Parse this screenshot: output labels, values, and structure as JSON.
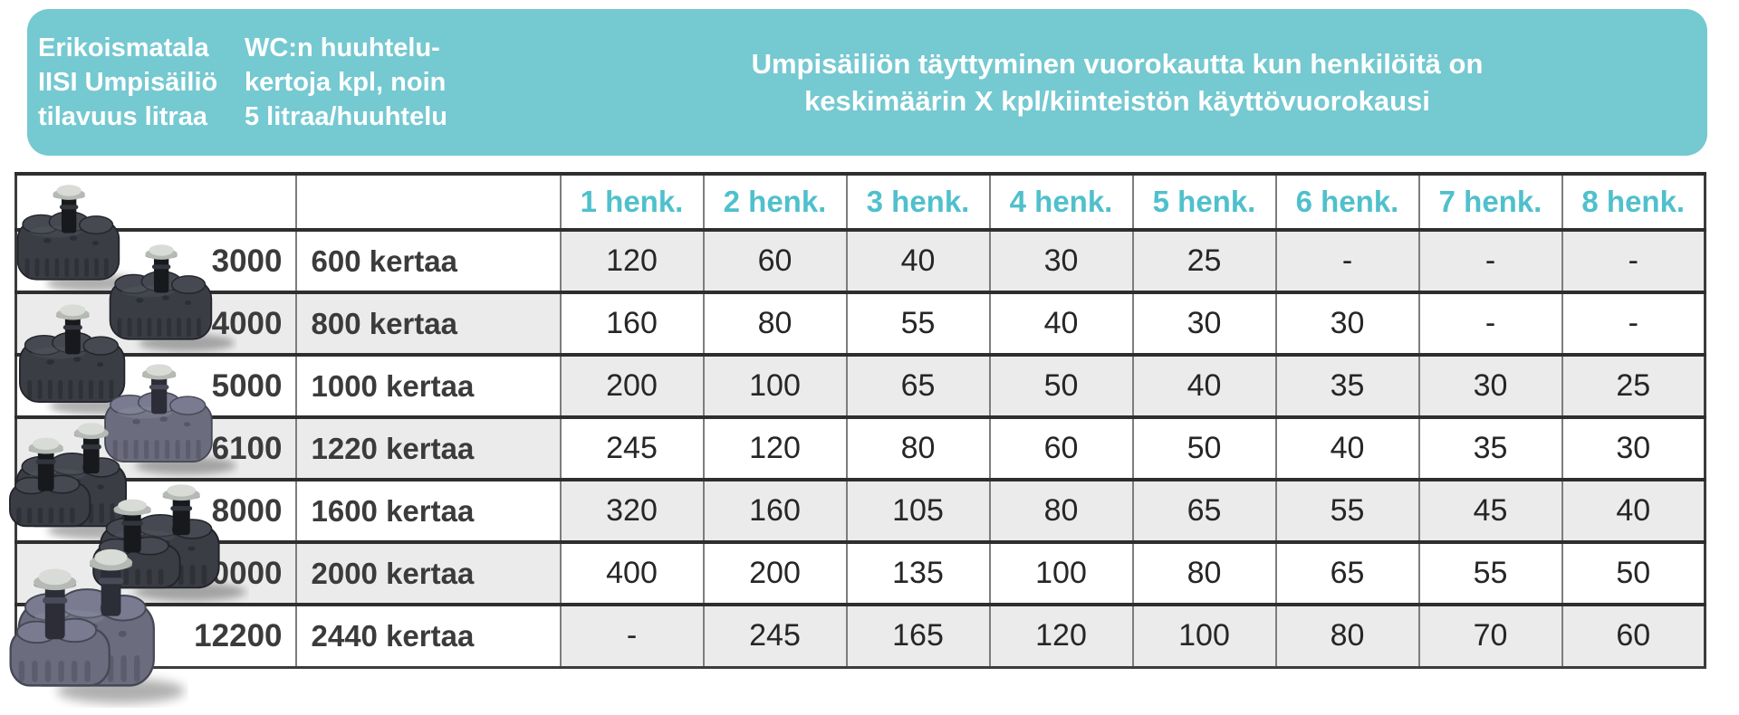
{
  "banner": {
    "volume_title_lines": [
      "Erikoismatala",
      "IISI Umpisäiliö",
      "tilavuus litraa"
    ],
    "flush_title_lines": [
      "WC:n huuhtelu-",
      "kertoja kpl, noin",
      "5 litraa/huuhtelu"
    ],
    "fill_title_lines": [
      "Umpisäiliön täyttyminen vuorokautta kun henkilöitä on",
      "keskimäärin X kpl/kiinteistön käyttövuorokausi"
    ]
  },
  "table": {
    "person_headers": [
      "1 henk.",
      "2 henk.",
      "3 henk.",
      "4 henk.",
      "5 henk.",
      "6 henk.",
      "7 henk.",
      "8 henk."
    ],
    "rows": [
      {
        "volume": "3000",
        "flushes": "600 kertaa",
        "values": [
          "120",
          "60",
          "40",
          "30",
          "25",
          "-",
          "-",
          "-"
        ]
      },
      {
        "volume": "4000",
        "flushes": "800 kertaa",
        "values": [
          "160",
          "80",
          "55",
          "40",
          "30",
          "30",
          "-",
          "-"
        ]
      },
      {
        "volume": "5000",
        "flushes": "1000 kertaa",
        "values": [
          "200",
          "100",
          "65",
          "50",
          "40",
          "35",
          "30",
          "25"
        ]
      },
      {
        "volume": "6100",
        "flushes": "1220 kertaa",
        "values": [
          "245",
          "120",
          "80",
          "60",
          "50",
          "40",
          "35",
          "30"
        ]
      },
      {
        "volume": "8000",
        "flushes": "1600 kertaa",
        "values": [
          "320",
          "160",
          "105",
          "80",
          "65",
          "55",
          "45",
          "40"
        ]
      },
      {
        "volume": "10000",
        "flushes": "2000 kertaa",
        "values": [
          "400",
          "200",
          "135",
          "100",
          "80",
          "65",
          "55",
          "50"
        ]
      },
      {
        "volume": "12200",
        "flushes": "2440 kertaa",
        "values": [
          "-",
          "245",
          "165",
          "120",
          "100",
          "80",
          "70",
          "60"
        ]
      }
    ]
  },
  "tank_images": [
    {
      "name": "tank-3000",
      "variant": "charcoal",
      "caps": 1
    },
    {
      "name": "tank-4000",
      "variant": "charcoal",
      "caps": 1
    },
    {
      "name": "tank-5000",
      "variant": "charcoal",
      "caps": 1
    },
    {
      "name": "tank-6100",
      "variant": "slate",
      "caps": 1
    },
    {
      "name": "tank-8000",
      "variant": "charcoal",
      "caps": 2
    },
    {
      "name": "tank-10000",
      "variant": "charcoal",
      "caps": 2
    },
    {
      "name": "tank-12200",
      "variant": "slate",
      "caps": 2
    }
  ],
  "colors": {
    "banner_bg": "#75c9d1",
    "banner_text": "#ffffff",
    "person_header_text": "#4fc0cc",
    "zebra_gray": "#ebebeb",
    "row_border": "#2e2e2e",
    "column_border": "#7d7d7d",
    "label_text": "#3b3b3b",
    "value_text": "#262626"
  }
}
